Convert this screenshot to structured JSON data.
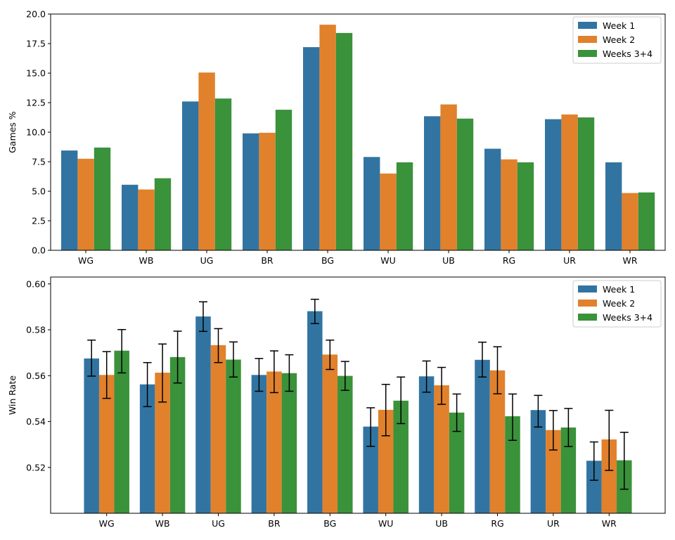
{
  "chart_data": [
    {
      "type": "bar",
      "title": "",
      "xlabel": "",
      "ylabel": "Games %",
      "ylim": [
        0,
        20
      ],
      "yticks": [
        "0.0",
        "2.5",
        "5.0",
        "7.5",
        "10.0",
        "12.5",
        "15.0",
        "17.5",
        "20.0"
      ],
      "ytick_values": [
        0,
        2.5,
        5,
        7.5,
        10,
        12.5,
        15,
        17.5,
        20
      ],
      "categories": [
        "WG",
        "WB",
        "UG",
        "BR",
        "BG",
        "WU",
        "UB",
        "RG",
        "UR",
        "WR"
      ],
      "series": [
        {
          "name": "Week 1",
          "color": "#3274a1",
          "values": [
            8.45,
            5.55,
            12.6,
            9.9,
            17.2,
            7.9,
            11.35,
            8.6,
            11.1,
            7.45
          ]
        },
        {
          "name": "Week 2",
          "color": "#e1812c",
          "values": [
            7.75,
            5.15,
            15.05,
            9.95,
            19.1,
            6.5,
            12.35,
            7.7,
            11.5,
            4.85
          ]
        },
        {
          "name": "Weeks 3+4",
          "color": "#3a923a",
          "values": [
            8.7,
            6.1,
            12.85,
            11.9,
            18.4,
            7.45,
            11.15,
            7.45,
            11.25,
            4.9
          ]
        }
      ],
      "legend": "top-right",
      "grid": false
    },
    {
      "type": "bar",
      "title": "",
      "xlabel": "",
      "ylabel": "Win Rate",
      "ylim": [
        0.5,
        0.603
      ],
      "yticks": [
        "0.52",
        "0.54",
        "0.56",
        "0.58",
        "0.60"
      ],
      "ytick_values": [
        0.52,
        0.54,
        0.56,
        0.58,
        0.6
      ],
      "categories": [
        "WG",
        "WB",
        "UG",
        "BR",
        "BG",
        "WU",
        "UB",
        "RG",
        "UR",
        "WR"
      ],
      "series": [
        {
          "name": "Week 1",
          "color": "#3274a1",
          "values": [
            0.5675,
            0.5562,
            0.5858,
            0.5603,
            0.5881,
            0.5378,
            0.5597,
            0.5669,
            0.545,
            0.5229
          ],
          "err_low": [
            0.5598,
            0.5465,
            0.5793,
            0.5532,
            0.5827,
            0.5292,
            0.5528,
            0.5594,
            0.5376,
            0.5144
          ],
          "err_high": [
            0.5755,
            0.5657,
            0.5922,
            0.5675,
            0.5933,
            0.546,
            0.5664,
            0.5746,
            0.5514,
            0.5311
          ]
        },
        {
          "name": "Week 2",
          "color": "#e1812c",
          "values": [
            0.5603,
            0.5613,
            0.5733,
            0.5618,
            0.5692,
            0.5451,
            0.5558,
            0.5623,
            0.5363,
            0.5322
          ],
          "err_low": [
            0.5501,
            0.5485,
            0.5657,
            0.5526,
            0.5627,
            0.5338,
            0.5475,
            0.5521,
            0.5276,
            0.5187
          ],
          "err_high": [
            0.5705,
            0.5738,
            0.5805,
            0.5708,
            0.5755,
            0.5562,
            0.5636,
            0.5726,
            0.5448,
            0.5449
          ]
        },
        {
          "name": "Weeks 3+4",
          "color": "#3a923a",
          "values": [
            0.5709,
            0.5681,
            0.567,
            0.5611,
            0.5599,
            0.5491,
            0.5439,
            0.5423,
            0.5374,
            0.5231
          ],
          "err_low": [
            0.5612,
            0.5568,
            0.5594,
            0.5532,
            0.5536,
            0.5391,
            0.5357,
            0.5318,
            0.5291,
            0.5105
          ],
          "err_high": [
            0.5801,
            0.5794,
            0.5747,
            0.5691,
            0.5662,
            0.5594,
            0.552,
            0.552,
            0.5457,
            0.5353
          ]
        }
      ],
      "legend": "top-right",
      "grid": false
    }
  ]
}
